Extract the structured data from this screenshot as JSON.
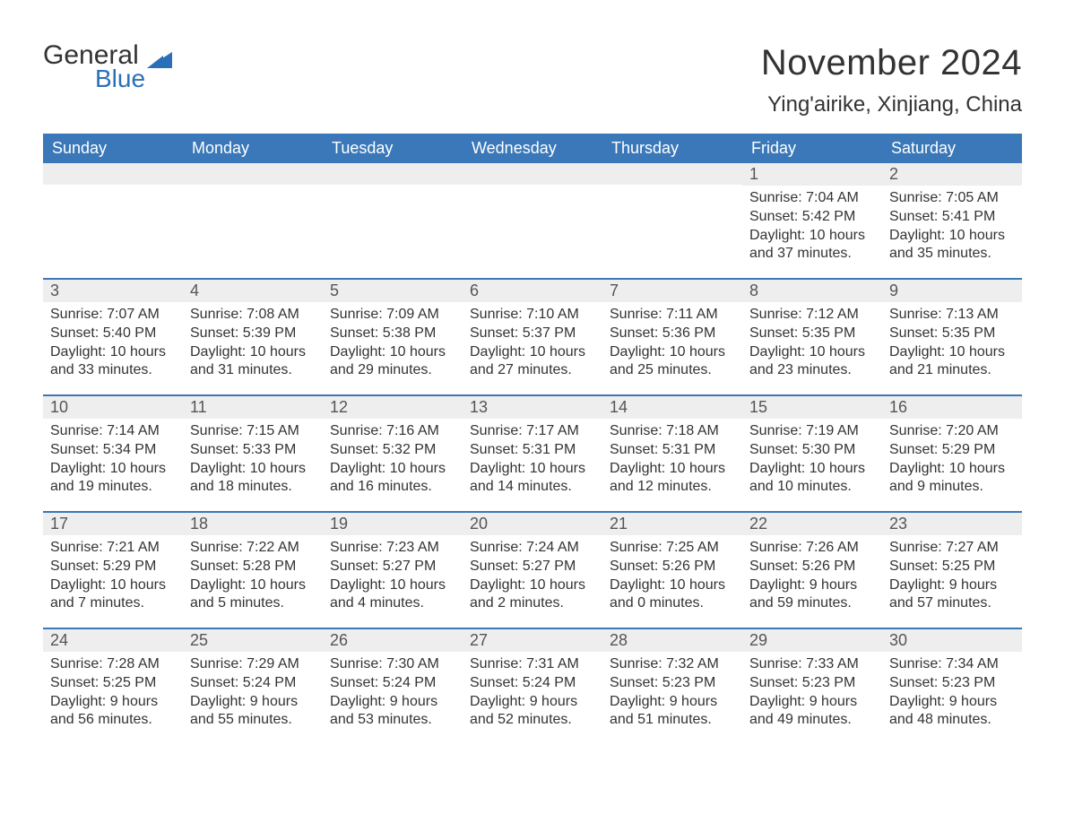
{
  "brand": {
    "general": "General",
    "blue": "Blue",
    "logo_color": "#2a70b8"
  },
  "title": "November 2024",
  "location": "Ying'airike, Xinjiang, China",
  "colors": {
    "header_bg": "#3a78b9",
    "header_text": "#ffffff",
    "daynum_bg": "#eeeeee",
    "row_border": "#3a78b9",
    "body_text": "#333333"
  },
  "fonts": {
    "title_pt": 40,
    "location_pt": 24,
    "header_pt": 18,
    "body_pt": 16
  },
  "days_of_week": [
    "Sunday",
    "Monday",
    "Tuesday",
    "Wednesday",
    "Thursday",
    "Friday",
    "Saturday"
  ],
  "weeks": [
    [
      null,
      null,
      null,
      null,
      null,
      {
        "n": "1",
        "sunrise": "7:04 AM",
        "sunset": "5:42 PM",
        "daylight": "10 hours and 37 minutes."
      },
      {
        "n": "2",
        "sunrise": "7:05 AM",
        "sunset": "5:41 PM",
        "daylight": "10 hours and 35 minutes."
      }
    ],
    [
      {
        "n": "3",
        "sunrise": "7:07 AM",
        "sunset": "5:40 PM",
        "daylight": "10 hours and 33 minutes."
      },
      {
        "n": "4",
        "sunrise": "7:08 AM",
        "sunset": "5:39 PM",
        "daylight": "10 hours and 31 minutes."
      },
      {
        "n": "5",
        "sunrise": "7:09 AM",
        "sunset": "5:38 PM",
        "daylight": "10 hours and 29 minutes."
      },
      {
        "n": "6",
        "sunrise": "7:10 AM",
        "sunset": "5:37 PM",
        "daylight": "10 hours and 27 minutes."
      },
      {
        "n": "7",
        "sunrise": "7:11 AM",
        "sunset": "5:36 PM",
        "daylight": "10 hours and 25 minutes."
      },
      {
        "n": "8",
        "sunrise": "7:12 AM",
        "sunset": "5:35 PM",
        "daylight": "10 hours and 23 minutes."
      },
      {
        "n": "9",
        "sunrise": "7:13 AM",
        "sunset": "5:35 PM",
        "daylight": "10 hours and 21 minutes."
      }
    ],
    [
      {
        "n": "10",
        "sunrise": "7:14 AM",
        "sunset": "5:34 PM",
        "daylight": "10 hours and 19 minutes."
      },
      {
        "n": "11",
        "sunrise": "7:15 AM",
        "sunset": "5:33 PM",
        "daylight": "10 hours and 18 minutes."
      },
      {
        "n": "12",
        "sunrise": "7:16 AM",
        "sunset": "5:32 PM",
        "daylight": "10 hours and 16 minutes."
      },
      {
        "n": "13",
        "sunrise": "7:17 AM",
        "sunset": "5:31 PM",
        "daylight": "10 hours and 14 minutes."
      },
      {
        "n": "14",
        "sunrise": "7:18 AM",
        "sunset": "5:31 PM",
        "daylight": "10 hours and 12 minutes."
      },
      {
        "n": "15",
        "sunrise": "7:19 AM",
        "sunset": "5:30 PM",
        "daylight": "10 hours and 10 minutes."
      },
      {
        "n": "16",
        "sunrise": "7:20 AM",
        "sunset": "5:29 PM",
        "daylight": "10 hours and 9 minutes."
      }
    ],
    [
      {
        "n": "17",
        "sunrise": "7:21 AM",
        "sunset": "5:29 PM",
        "daylight": "10 hours and 7 minutes."
      },
      {
        "n": "18",
        "sunrise": "7:22 AM",
        "sunset": "5:28 PM",
        "daylight": "10 hours and 5 minutes."
      },
      {
        "n": "19",
        "sunrise": "7:23 AM",
        "sunset": "5:27 PM",
        "daylight": "10 hours and 4 minutes."
      },
      {
        "n": "20",
        "sunrise": "7:24 AM",
        "sunset": "5:27 PM",
        "daylight": "10 hours and 2 minutes."
      },
      {
        "n": "21",
        "sunrise": "7:25 AM",
        "sunset": "5:26 PM",
        "daylight": "10 hours and 0 minutes."
      },
      {
        "n": "22",
        "sunrise": "7:26 AM",
        "sunset": "5:26 PM",
        "daylight": "9 hours and 59 minutes."
      },
      {
        "n": "23",
        "sunrise": "7:27 AM",
        "sunset": "5:25 PM",
        "daylight": "9 hours and 57 minutes."
      }
    ],
    [
      {
        "n": "24",
        "sunrise": "7:28 AM",
        "sunset": "5:25 PM",
        "daylight": "9 hours and 56 minutes."
      },
      {
        "n": "25",
        "sunrise": "7:29 AM",
        "sunset": "5:24 PM",
        "daylight": "9 hours and 55 minutes."
      },
      {
        "n": "26",
        "sunrise": "7:30 AM",
        "sunset": "5:24 PM",
        "daylight": "9 hours and 53 minutes."
      },
      {
        "n": "27",
        "sunrise": "7:31 AM",
        "sunset": "5:24 PM",
        "daylight": "9 hours and 52 minutes."
      },
      {
        "n": "28",
        "sunrise": "7:32 AM",
        "sunset": "5:23 PM",
        "daylight": "9 hours and 51 minutes."
      },
      {
        "n": "29",
        "sunrise": "7:33 AM",
        "sunset": "5:23 PM",
        "daylight": "9 hours and 49 minutes."
      },
      {
        "n": "30",
        "sunrise": "7:34 AM",
        "sunset": "5:23 PM",
        "daylight": "9 hours and 48 minutes."
      }
    ]
  ],
  "labels": {
    "sunrise": "Sunrise: ",
    "sunset": "Sunset: ",
    "daylight": "Daylight: "
  }
}
